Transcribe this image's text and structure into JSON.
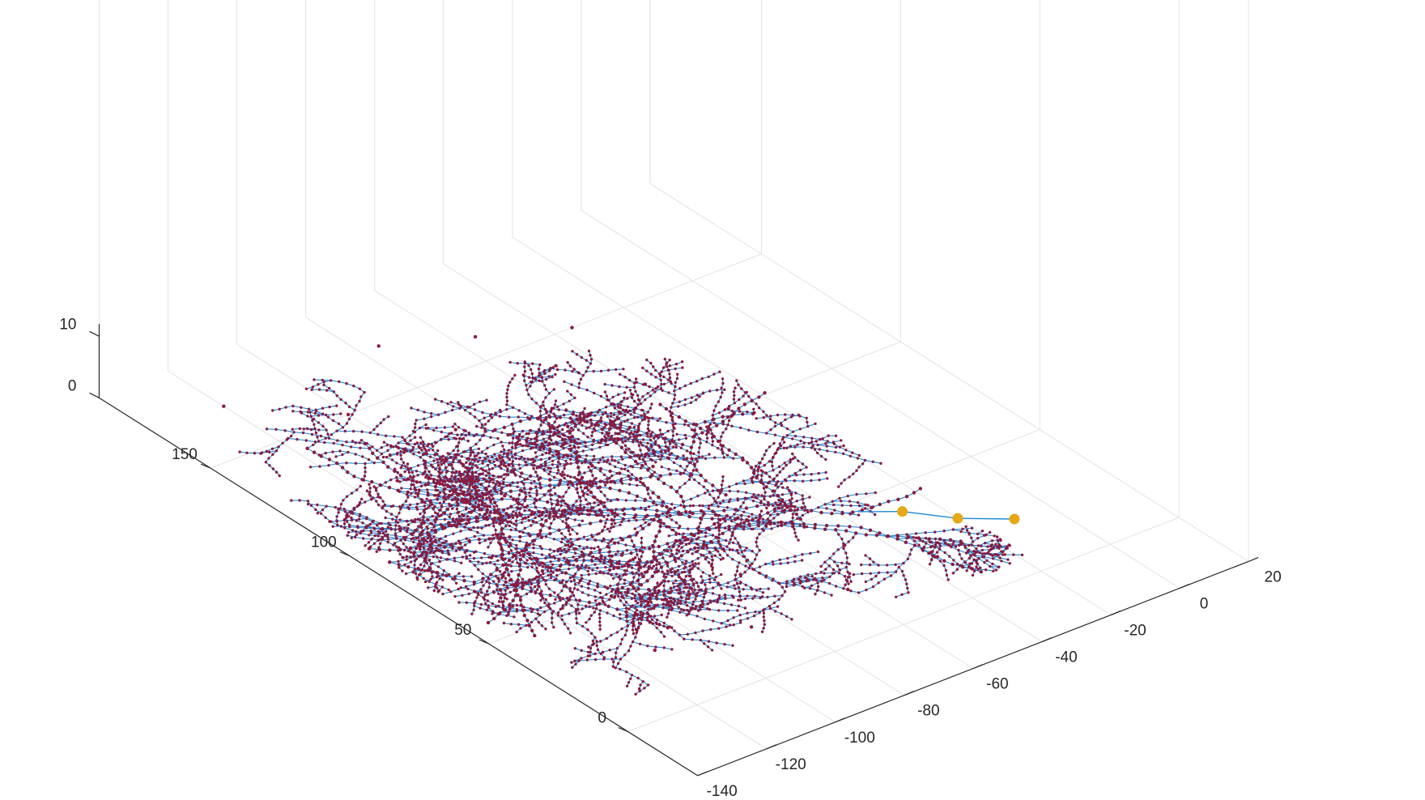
{
  "chart_data": {
    "type": "scatter",
    "subtype": "3d-network-graph",
    "title": "",
    "xlabel": "",
    "ylabel": "",
    "zlabel": "",
    "xlim": [
      -140,
      20
    ],
    "ylim": [
      -25,
      190
    ],
    "zlim": [
      0,
      10
    ],
    "x_ticks": [
      -140,
      -120,
      -100,
      -80,
      -60,
      -40,
      -20,
      0,
      20
    ],
    "y_ticks": [
      0,
      50,
      100,
      150
    ],
    "z_ticks": [
      0,
      10
    ],
    "grid": true,
    "legend": "none",
    "colors": {
      "edges": "#1f8ad6",
      "nodes": "#8b1a3e",
      "root_nodes": "#e6a817",
      "grid": "#e3e3e3",
      "axis": "#262626"
    },
    "root_nodes": [
      {
        "x": -28,
        "y": 40,
        "z": 0
      },
      {
        "x": -20,
        "y": 30,
        "z": 0
      },
      {
        "x": -10,
        "y": 22,
        "z": 0
      }
    ],
    "network_notes": "dense branching vascular-like graph spanning approx x -135..-20, y 5..185 at z=0; thousands of small red nodes joined by thin blue edges"
  }
}
